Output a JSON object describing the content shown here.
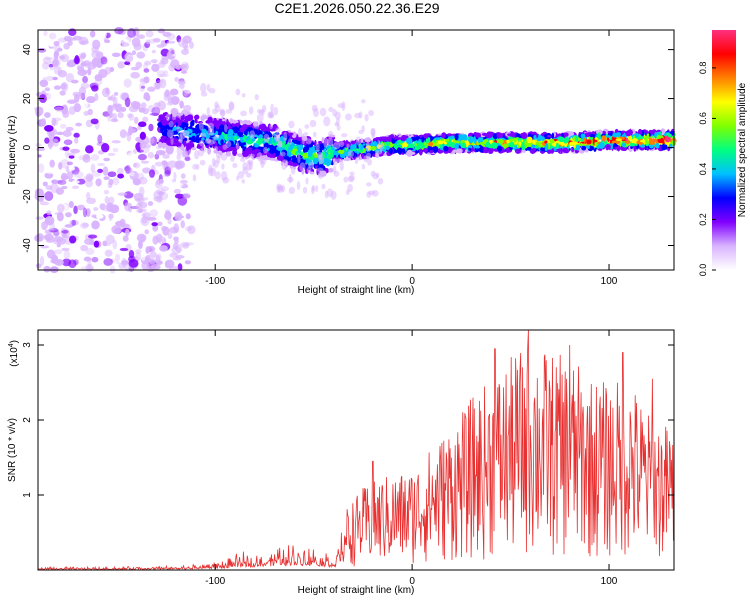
{
  "title": "C2E1.2026.050.22.36.E29",
  "chart_data": [
    {
      "type": "heatmap",
      "name": "spectrogram",
      "xlabel": "Height of straight line (km)",
      "ylabel": "Frequency (Hz)",
      "xlim": [
        -190,
        133
      ],
      "ylim": [
        -50,
        48
      ],
      "xticks": [
        -100,
        0,
        100
      ],
      "yticks": [
        -40,
        -20,
        0,
        20,
        40
      ],
      "xtick_labels": [
        "-100",
        "0",
        "100"
      ],
      "ytick_labels": [
        "-40",
        "-20",
        "0",
        "20",
        "40"
      ],
      "ridge": {
        "height_km": [
          -130,
          -110,
          -90,
          -70,
          -55,
          -45,
          -40,
          -30,
          -20,
          -10,
          0,
          20,
          40,
          60,
          80,
          100,
          120,
          133
        ],
        "center_freq_hz": [
          8,
          6,
          4,
          2,
          -3,
          -4,
          -2,
          -1,
          0,
          1,
          1,
          2,
          2,
          2,
          2,
          3,
          3,
          3
        ]
      },
      "noise_region_km": [
        -190,
        -120
      ],
      "colorbar": {
        "label": "Normalized spectral amplitude",
        "range": [
          0.0,
          0.95
        ],
        "ticks": [
          0.0,
          0.2,
          0.4,
          0.6,
          0.8
        ],
        "tick_labels": [
          "0.0",
          "0.2",
          "0.4",
          "0.6",
          "0.8"
        ],
        "colormap": [
          "#ffffff",
          "#d9b3ff",
          "#8000ff",
          "#0000ff",
          "#00c0ff",
          "#00ff80",
          "#80ff00",
          "#ffff00",
          "#ff8000",
          "#ff0000",
          "#ff3080"
        ]
      }
    },
    {
      "type": "line",
      "name": "snr",
      "xlabel": "Height of straight line (km)",
      "ylabel": "SNR (10 * v/v)",
      "scale_label": "(x10",
      "scale_exponent": "4",
      "scale_close": ")",
      "xlim": [
        -190,
        133
      ],
      "ylim": [
        0,
        3.2
      ],
      "xticks": [
        -100,
        0,
        100
      ],
      "yticks": [
        1,
        2,
        3
      ],
      "xtick_labels": [
        "-100",
        "0",
        "100"
      ],
      "ytick_labels": [
        "1",
        "2",
        "3"
      ],
      "color": "#e83030",
      "envelope": {
        "x": [
          -190,
          -150,
          -120,
          -100,
          -90,
          -70,
          -60,
          -50,
          -40,
          -36,
          -33,
          -25,
          -15,
          0,
          15,
          30,
          45,
          60,
          70,
          80,
          90,
          100,
          110,
          120,
          133
        ],
        "y": [
          0.04,
          0.05,
          0.06,
          0.12,
          0.22,
          0.35,
          0.42,
          0.36,
          0.25,
          0.5,
          0.85,
          1.1,
          1.25,
          1.35,
          1.8,
          2.3,
          2.7,
          3.1,
          2.9,
          2.85,
          2.6,
          2.5,
          2.6,
          2.1,
          1.9
        ]
      },
      "peaks": [
        {
          "x": -20,
          "y": 1.45
        },
        {
          "x": 27,
          "y": 2.05
        },
        {
          "x": 42,
          "y": 2.95
        },
        {
          "x": 59,
          "y": 3.2
        },
        {
          "x": 80,
          "y": 3.0
        },
        {
          "x": 107,
          "y": 2.9
        },
        {
          "x": 122,
          "y": 2.55
        }
      ]
    }
  ]
}
